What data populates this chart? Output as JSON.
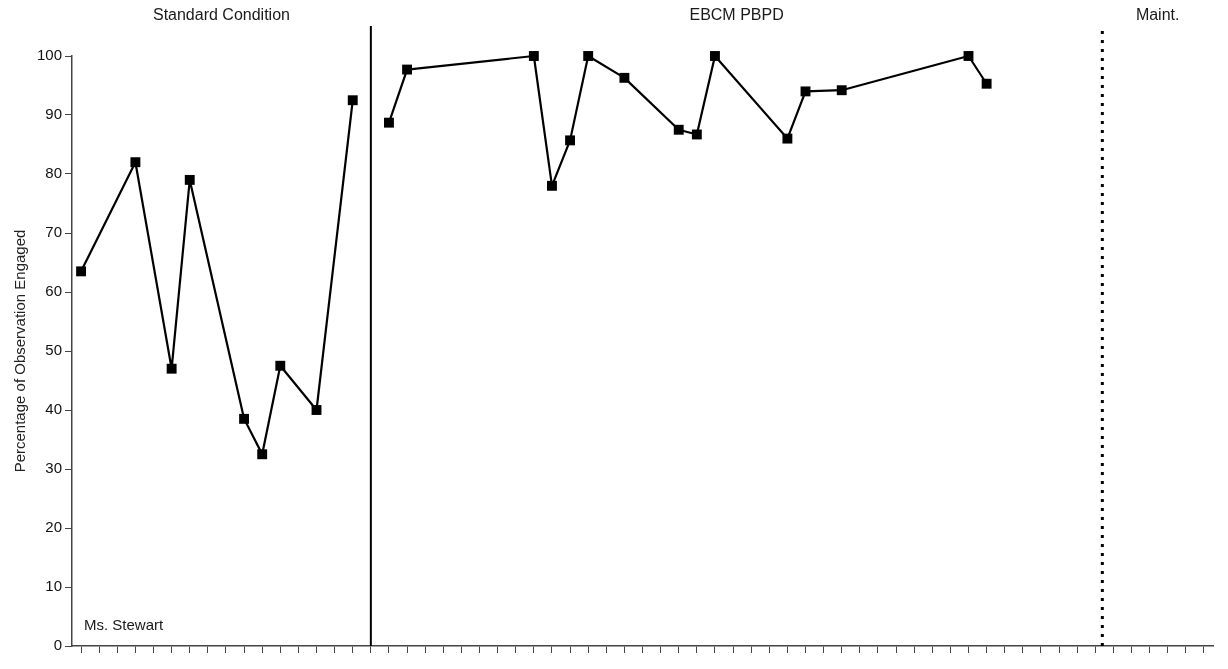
{
  "chart_data": {
    "type": "line",
    "ylabel": "Percentage of Observation Engaged",
    "annotations": [
      "Standard Condition",
      "EBCM PBPD",
      "Maint.",
      "Ms. Stewart"
    ],
    "categories": [
      null,
      null,
      null,
      null,
      null,
      null,
      null,
      null,
      null,
      null,
      null,
      null,
      null,
      null,
      null,
      null,
      null,
      null,
      null,
      null,
      null,
      null,
      null,
      null,
      null,
      null,
      null,
      null,
      null,
      null,
      null,
      null,
      null,
      null,
      null,
      null,
      null,
      null,
      null,
      null,
      null,
      null,
      null,
      null,
      null,
      null,
      null,
      null,
      null,
      null,
      null,
      null,
      null,
      null,
      null,
      null,
      null,
      null,
      null,
      null,
      null,
      null,
      null
    ],
    "series": [
      {
        "color": "#000000",
        "values": [
          63.5,
          null,
          null,
          82,
          null,
          47,
          79,
          null,
          null,
          38.5,
          32.5,
          47.5,
          null,
          40,
          null,
          92.5,
          null,
          null,
          null,
          null,
          null,
          null,
          null,
          null,
          null,
          null,
          null,
          null,
          null,
          null,
          null,
          null,
          null,
          null,
          null,
          null,
          null,
          null,
          null,
          null,
          null,
          null,
          null,
          null,
          null,
          null,
          null,
          null,
          null,
          null,
          null,
          null,
          null,
          null,
          null,
          null,
          null,
          null,
          null,
          null,
          null,
          null,
          null
        ]
      },
      {
        "color": "#000000",
        "values": [
          null,
          null,
          null,
          null,
          null,
          null,
          null,
          null,
          null,
          null,
          null,
          null,
          null,
          null,
          null,
          null,
          null,
          88.7,
          97.7,
          null,
          null,
          null,
          null,
          null,
          null,
          100,
          78,
          85.7,
          100,
          null,
          96.3,
          null,
          null,
          87.5,
          86.7,
          100,
          null,
          null,
          null,
          86,
          94,
          null,
          94.2,
          null,
          null,
          null,
          null,
          null,
          null,
          100,
          95.3,
          null,
          null,
          null,
          null,
          null,
          null,
          null,
          null,
          null,
          null,
          null,
          null
        ]
      }
    ],
    "marker": "square",
    "line_style": "solid",
    "grid": false,
    "legend": false,
    "tick_labels": "y",
    "ylim": [
      0,
      100
    ],
    "yticks": [
      0,
      10,
      20,
      30,
      40,
      50,
      60,
      70,
      80,
      90,
      100
    ]
  }
}
